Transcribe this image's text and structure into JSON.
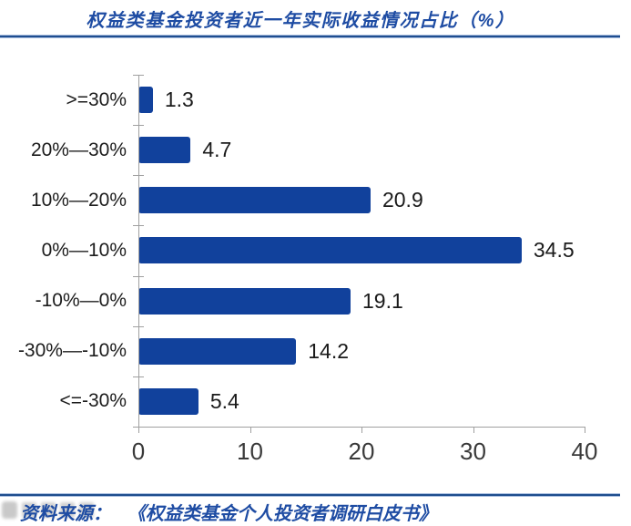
{
  "title": "权益类基金投资者近一年实际收益情况占比（%）",
  "chart_data": {
    "type": "bar",
    "orientation": "horizontal",
    "title": "权益类基金投资者近一年实际收益情况占比（%）",
    "categories": [
      ">=30%",
      "20%—30%",
      "10%—20%",
      "0%—10%",
      "-10%—0%",
      "-30%—-10%",
      "<=-30%"
    ],
    "values": [
      1.3,
      4.7,
      20.9,
      34.5,
      19.1,
      14.2,
      5.4
    ],
    "x_ticks": [
      0,
      10,
      20,
      30,
      40
    ],
    "xlim": [
      0,
      40
    ],
    "xlabel": "",
    "ylabel": "",
    "grid": false,
    "data_labels": true,
    "legend": "none",
    "bar_color": "#11419C"
  },
  "source": {
    "label": "资料来源：",
    "text": "《权益类基金个人投资者调研白皮书》"
  },
  "colors": {
    "bar_blue": "#11419C",
    "accent_blue": "#1E4CA3",
    "rule_navy": "#1F4E8F",
    "axis_gray": "#A0A0A0",
    "value_text": "#1A1A1A"
  }
}
